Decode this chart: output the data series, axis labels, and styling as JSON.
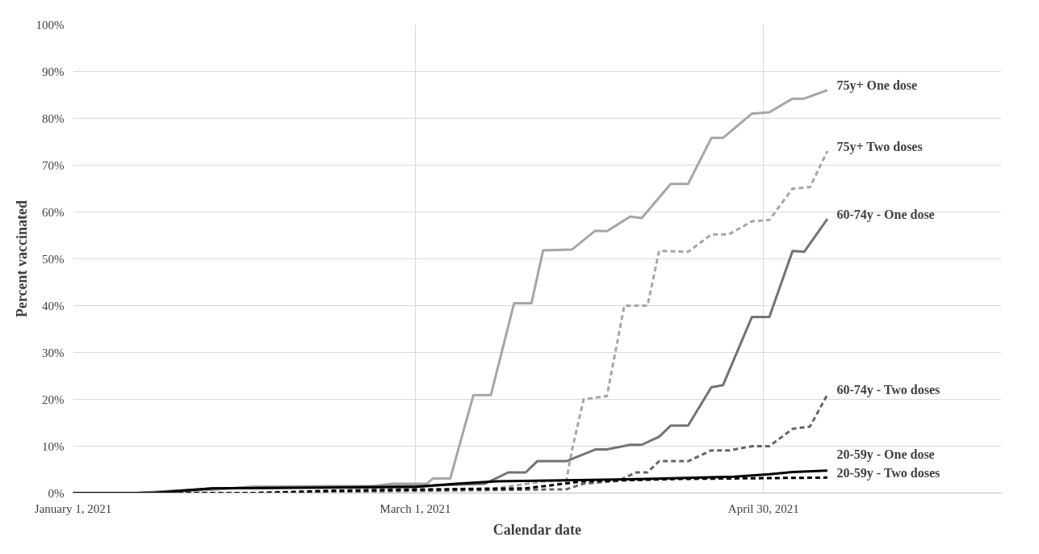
{
  "chart_data": {
    "type": "line",
    "xlabel": "Calendar date",
    "ylabel": "Percent vaccinated",
    "xlim": [
      "2021-01-01",
      "2021-06-10"
    ],
    "xticks": [
      {
        "value": "2021-01-01",
        "label": "January 1, 2021"
      },
      {
        "value": "2021-03-01",
        "label": "March 1, 2021"
      },
      {
        "value": "2021-04-30",
        "label": "April 30, 2021"
      }
    ],
    "ylim": [
      0,
      100
    ],
    "yticks": [
      {
        "value": 0,
        "label": "0%"
      },
      {
        "value": 10,
        "label": "10%"
      },
      {
        "value": 20,
        "label": "20%"
      },
      {
        "value": 30,
        "label": "30%"
      },
      {
        "value": 40,
        "label": "40%"
      },
      {
        "value": 50,
        "label": "50%"
      },
      {
        "value": 60,
        "label": "60%"
      },
      {
        "value": 70,
        "label": "70%"
      },
      {
        "value": 80,
        "label": "80%"
      },
      {
        "value": 90,
        "label": "90%"
      },
      {
        "value": 100,
        "label": "100%"
      }
    ],
    "grid": true,
    "legend": false,
    "marker": "none",
    "series": [
      {
        "name": "75y+ One dose",
        "color": "#a6a6a6",
        "line_style": "solid",
        "x": [
          "2021-01-01",
          "2021-01-12",
          "2021-01-25",
          "2021-02-01",
          "2021-02-22",
          "2021-02-25",
          "2021-03-03",
          "2021-03-04",
          "2021-03-07",
          "2021-03-11",
          "2021-03-14",
          "2021-03-18",
          "2021-03-21",
          "2021-03-23",
          "2021-03-28",
          "2021-04-01",
          "2021-04-03",
          "2021-04-07",
          "2021-04-09",
          "2021-04-14",
          "2021-04-17",
          "2021-04-21",
          "2021-04-23",
          "2021-04-28",
          "2021-05-01",
          "2021-05-05",
          "2021-05-07",
          "2021-05-11"
        ],
        "values": [
          0,
          0,
          0.7,
          1.4,
          1.5,
          2,
          2,
          3.1,
          3.1,
          20.9,
          20.9,
          40.5,
          40.5,
          51.8,
          52,
          56,
          55.9,
          59,
          58.7,
          66,
          66,
          75.8,
          75.8,
          81,
          81.3,
          84.2,
          84.2,
          86
        ]
      },
      {
        "name": "75y+ Two doses",
        "color": "#a6a6a6",
        "line_style": "dashed",
        "x": [
          "2021-01-01",
          "2021-02-05",
          "2021-02-15",
          "2021-03-15",
          "2021-03-23",
          "2021-03-27",
          "2021-03-28",
          "2021-03-30",
          "2021-04-03",
          "2021-04-06",
          "2021-04-10",
          "2021-04-12",
          "2021-04-17",
          "2021-04-21",
          "2021-04-24",
          "2021-04-28",
          "2021-05-01",
          "2021-05-05",
          "2021-05-08",
          "2021-05-11"
        ],
        "values": [
          0,
          0,
          0.5,
          1,
          2.5,
          2.6,
          9.3,
          20,
          20.7,
          40,
          40,
          51.7,
          51.5,
          55.2,
          55.2,
          58,
          58.3,
          65,
          65.3,
          73
        ]
      },
      {
        "name": "60-74y - One dose",
        "color": "#737373",
        "line_style": "solid",
        "x": [
          "2021-01-01",
          "2021-01-12",
          "2021-01-25",
          "2021-03-01",
          "2021-03-13",
          "2021-03-17",
          "2021-03-20",
          "2021-03-22",
          "2021-03-27",
          "2021-04-01",
          "2021-04-03",
          "2021-04-07",
          "2021-04-09",
          "2021-04-12",
          "2021-04-14",
          "2021-04-17",
          "2021-04-21",
          "2021-04-23",
          "2021-04-28",
          "2021-05-01",
          "2021-05-05",
          "2021-05-07",
          "2021-05-11"
        ],
        "values": [
          0,
          0,
          1,
          1.5,
          2,
          4.4,
          4.4,
          6.8,
          6.8,
          9.3,
          9.3,
          10.3,
          10.3,
          12,
          14.4,
          14.4,
          22.6,
          23,
          37.6,
          37.6,
          51.7,
          51.5,
          58.5
        ]
      },
      {
        "name": "60-74y - Two doses",
        "color": "#666666",
        "line_style": "dashed",
        "x": [
          "2021-01-01",
          "2021-02-10",
          "2021-02-15",
          "2021-03-27",
          "2021-03-30",
          "2021-04-05",
          "2021-04-08",
          "2021-04-10",
          "2021-04-12",
          "2021-04-17",
          "2021-04-21",
          "2021-04-24",
          "2021-04-28",
          "2021-05-01",
          "2021-05-05",
          "2021-05-08",
          "2021-05-11"
        ],
        "values": [
          0,
          0,
          0.3,
          0.8,
          2,
          2.6,
          4.4,
          4.4,
          6.8,
          6.8,
          9.1,
          9.1,
          10,
          10,
          13.7,
          14.2,
          21
        ]
      },
      {
        "name": "20-59y - One dose",
        "color": "#000000",
        "line_style": "solid",
        "x": [
          "2021-01-01",
          "2021-01-15",
          "2021-01-25",
          "2021-03-01",
          "2021-03-08",
          "2021-03-15",
          "2021-04-10",
          "2021-04-25",
          "2021-05-01",
          "2021-05-05",
          "2021-05-11"
        ],
        "values": [
          0,
          0,
          1,
          1.3,
          2,
          2.5,
          3,
          3.5,
          4,
          4.5,
          4.8
        ]
      },
      {
        "name": "20-59y - Two doses",
        "color": "#000000",
        "line_style": "dashed",
        "x": [
          "2021-01-01",
          "2021-02-01",
          "2021-02-15",
          "2021-03-20",
          "2021-03-30",
          "2021-04-15",
          "2021-05-11"
        ],
        "values": [
          0,
          0,
          0.5,
          1,
          2.5,
          3,
          3.3
        ]
      }
    ]
  }
}
